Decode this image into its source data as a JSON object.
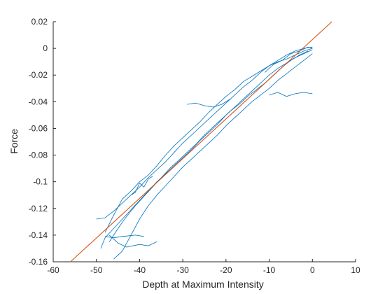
{
  "chart_data": {
    "type": "line",
    "title": "",
    "xlabel": "Depth at Maximum Intensity",
    "ylabel": "Force",
    "xlim": [
      -60,
      10
    ],
    "ylim": [
      -0.16,
      0.02
    ],
    "xticks": [
      -60,
      -50,
      -40,
      -30,
      -20,
      -10,
      0,
      10
    ],
    "yticks": [
      0.02,
      0,
      -0.02,
      -0.04,
      -0.06,
      -0.08,
      -0.1,
      -0.12,
      -0.14,
      -0.16
    ],
    "xtick_labels": [
      "-60",
      "-50",
      "-40",
      "-30",
      "-20",
      "-10",
      "0",
      "10"
    ],
    "ytick_labels": [
      "0.02",
      "0",
      "-0.02",
      "-0.04",
      "-0.06",
      "-0.08",
      "-0.1",
      "-0.12",
      "-0.14",
      "-0.16"
    ],
    "grid": false,
    "box": "open-top-right",
    "series": [
      {
        "style": "fit-line",
        "color": "#d95319",
        "x": [
          -56,
          4.5
        ],
        "y": [
          -0.16,
          0.02
        ]
      },
      {
        "style": "trace",
        "color": "#0072bd",
        "x": [
          -49,
          -48,
          -46,
          -44,
          -42,
          -40,
          -38,
          -36,
          -34,
          -32,
          -30,
          -28,
          -26,
          -24,
          -22,
          -20,
          -18,
          -16,
          -14,
          -12,
          -10,
          -8,
          -6,
          -4,
          -2,
          0
        ],
        "y": [
          -0.15,
          -0.142,
          -0.135,
          -0.128,
          -0.121,
          -0.114,
          -0.107,
          -0.1,
          -0.094,
          -0.088,
          -0.082,
          -0.076,
          -0.069,
          -0.063,
          -0.057,
          -0.05,
          -0.044,
          -0.038,
          -0.032,
          -0.026,
          -0.02,
          -0.015,
          -0.011,
          -0.007,
          -0.004,
          -0.001
        ]
      },
      {
        "style": "trace",
        "color": "#0072bd",
        "x": [
          -50,
          -48,
          -46,
          -44,
          -42,
          -40,
          -38,
          -36,
          -34,
          -32,
          -30,
          -28,
          -26,
          -24,
          -22,
          -20,
          -18,
          -16,
          -14,
          -12,
          -10,
          -8,
          -6,
          -4,
          -2,
          0
        ],
        "y": [
          -0.128,
          -0.127,
          -0.122,
          -0.116,
          -0.11,
          -0.104,
          -0.097,
          -0.091,
          -0.085,
          -0.078,
          -0.071,
          -0.065,
          -0.059,
          -0.053,
          -0.047,
          -0.041,
          -0.035,
          -0.029,
          -0.024,
          -0.018,
          -0.013,
          -0.009,
          -0.005,
          -0.002,
          0.0,
          0.001
        ]
      },
      {
        "style": "trace",
        "color": "#0072bd",
        "x": [
          -46,
          -44,
          -42,
          -40,
          -38,
          -36,
          -34,
          -32,
          -30,
          -28,
          -26,
          -24,
          -22,
          -20,
          -18,
          -16,
          -14,
          -12,
          -10,
          -8,
          -6,
          -4,
          -2,
          0
        ],
        "y": [
          -0.158,
          -0.152,
          -0.14,
          -0.128,
          -0.118,
          -0.11,
          -0.103,
          -0.096,
          -0.089,
          -0.083,
          -0.077,
          -0.071,
          -0.065,
          -0.058,
          -0.052,
          -0.046,
          -0.04,
          -0.035,
          -0.03,
          -0.024,
          -0.019,
          -0.014,
          -0.009,
          -0.004
        ]
      },
      {
        "style": "trace",
        "color": "#0072bd",
        "x": [
          -48,
          -46,
          -44,
          -42,
          -40,
          -38,
          -36,
          -34,
          -32,
          -30,
          -28,
          -26,
          -24,
          -22,
          -20,
          -18,
          -16,
          -14,
          -12,
          -10,
          -8,
          -6,
          -4,
          -2,
          0
        ],
        "y": [
          -0.138,
          -0.125,
          -0.113,
          -0.107,
          -0.1,
          -0.095,
          -0.088,
          -0.08,
          -0.073,
          -0.067,
          -0.061,
          -0.055,
          -0.048,
          -0.042,
          -0.036,
          -0.031,
          -0.025,
          -0.021,
          -0.017,
          -0.013,
          -0.01,
          -0.008,
          -0.005,
          -0.002,
          0.0
        ]
      },
      {
        "style": "trace",
        "color": "#0072bd",
        "x": [
          -47,
          -45,
          -43,
          -41,
          -39,
          -37,
          -35,
          -33,
          -31,
          -29,
          -27,
          -25,
          -23,
          -21,
          -19,
          -17,
          -15,
          -13,
          -11,
          -9,
          -7,
          -5,
          -3,
          -1
        ],
        "y": [
          -0.145,
          -0.135,
          -0.126,
          -0.118,
          -0.111,
          -0.104,
          -0.097,
          -0.09,
          -0.084,
          -0.078,
          -0.072,
          -0.065,
          -0.059,
          -0.053,
          -0.047,
          -0.042,
          -0.036,
          -0.031,
          -0.026,
          -0.02,
          -0.014,
          -0.009,
          -0.005,
          -0.002
        ]
      },
      {
        "style": "trace",
        "color": "#0072bd",
        "x": [
          -36,
          -38,
          -40,
          -43,
          -45,
          -46,
          -47
        ],
        "y": [
          -0.145,
          -0.148,
          -0.147,
          -0.149,
          -0.146,
          -0.143,
          -0.14
        ]
      },
      {
        "style": "trace",
        "color": "#0072bd",
        "x": [
          -39,
          -41,
          -44,
          -46,
          -48
        ],
        "y": [
          -0.141,
          -0.14,
          -0.141,
          -0.142,
          -0.141
        ]
      },
      {
        "style": "trace",
        "color": "#0072bd",
        "x": [
          -29,
          -27,
          -25,
          -23,
          -21,
          -19
        ],
        "y": [
          -0.042,
          -0.041,
          -0.043,
          -0.044,
          -0.042,
          -0.038
        ]
      },
      {
        "style": "trace",
        "color": "#0072bd",
        "x": [
          -10,
          -8,
          -6,
          -4,
          -2,
          0
        ],
        "y": [
          -0.035,
          -0.033,
          -0.036,
          -0.034,
          -0.033,
          -0.034
        ]
      },
      {
        "style": "trace",
        "color": "#0072bd",
        "x": [
          -11,
          -9,
          -7,
          -5,
          -3,
          -1,
          0
        ],
        "y": [
          -0.018,
          -0.012,
          -0.009,
          -0.004,
          -0.002,
          0.001,
          0.0
        ]
      },
      {
        "style": "trace",
        "color": "#0072bd",
        "x": [
          -42,
          -41,
          -40,
          -39,
          -38,
          -37
        ],
        "y": [
          -0.11,
          -0.108,
          -0.101,
          -0.104,
          -0.098,
          -0.096
        ]
      }
    ]
  }
}
